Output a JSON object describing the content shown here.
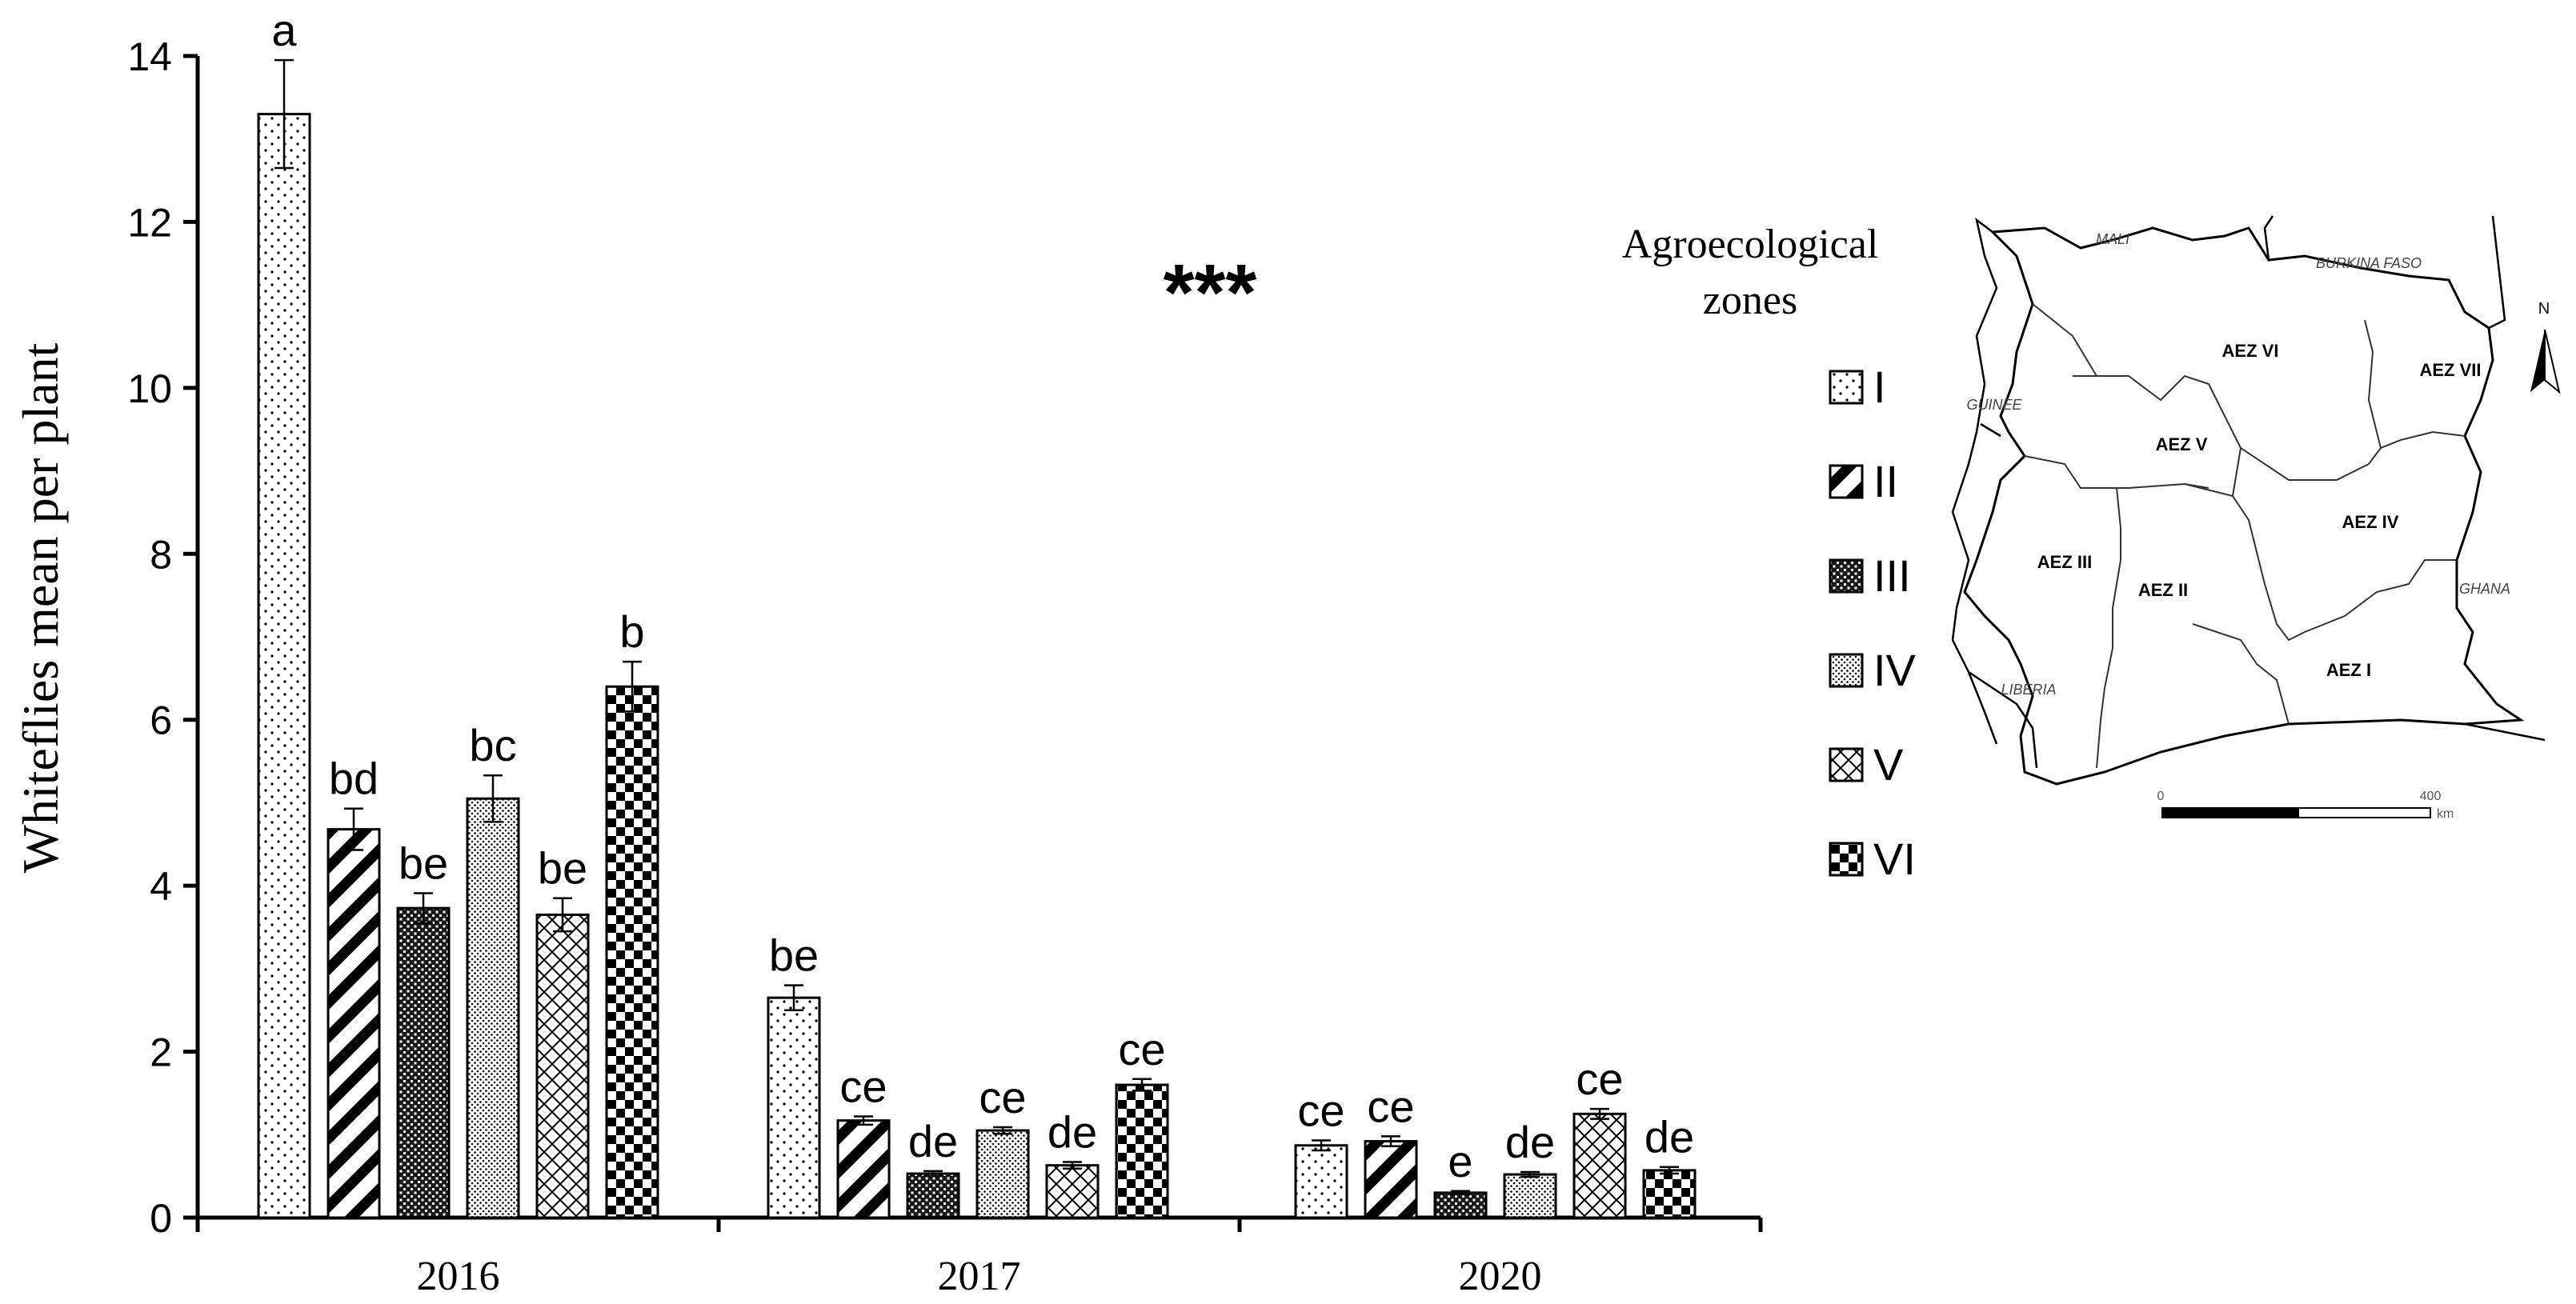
{
  "chart_data": {
    "type": "bar",
    "ylabel": "Whiteflies mean per plant",
    "ylim": [
      0,
      14
    ],
    "yticks": [
      0,
      2,
      4,
      6,
      8,
      10,
      12,
      14
    ],
    "categories": [
      "2016",
      "2017",
      "2020"
    ],
    "significance": "***",
    "legend_title": "Agroecological zones",
    "legend_title_lines": [
      "Agroecological",
      "zones"
    ],
    "legend_position": "right",
    "series": [
      {
        "name": "I",
        "pattern": "dots",
        "values": [
          13.3,
          2.65,
          0.87
        ],
        "errors": [
          0.65,
          0.15,
          0.06
        ],
        "letters": [
          "a",
          "be",
          "ce"
        ]
      },
      {
        "name": "II",
        "pattern": "diagonal",
        "values": [
          4.68,
          1.17,
          0.92
        ],
        "errors": [
          0.25,
          0.05,
          0.06
        ],
        "letters": [
          "bd",
          "ce",
          "ce"
        ]
      },
      {
        "name": "III",
        "pattern": "dense-check",
        "values": [
          3.73,
          0.53,
          0.3
        ],
        "errors": [
          0.18,
          0.03,
          0.02
        ],
        "letters": [
          "be",
          "de",
          "e"
        ]
      },
      {
        "name": "IV",
        "pattern": "fine-dots",
        "values": [
          5.05,
          1.05,
          0.52
        ],
        "errors": [
          0.28,
          0.04,
          0.03
        ],
        "letters": [
          "bc",
          "ce",
          "de"
        ]
      },
      {
        "name": "V",
        "pattern": "crosshatch",
        "values": [
          3.65,
          0.63,
          1.25
        ],
        "errors": [
          0.2,
          0.04,
          0.06
        ],
        "letters": [
          "be",
          "de",
          "ce"
        ]
      },
      {
        "name": "VI",
        "pattern": "checker",
        "values": [
          6.4,
          1.6,
          0.57
        ],
        "errors": [
          0.3,
          0.07,
          0.04
        ],
        "letters": [
          "b",
          "ce",
          "de"
        ]
      }
    ]
  },
  "map": {
    "countries": [
      "MALI",
      "BURKINA FASO",
      "GUINEE",
      "LIBERIA",
      "GHANA"
    ],
    "zones": [
      "AEZ VI",
      "AEZ VII",
      "AEZ  V",
      "AEZ III",
      "AEZ II",
      "AEZ IV",
      "AEZ I"
    ],
    "north_label": "N",
    "scale_start": "0",
    "scale_end": "400",
    "scale_unit": "km"
  }
}
